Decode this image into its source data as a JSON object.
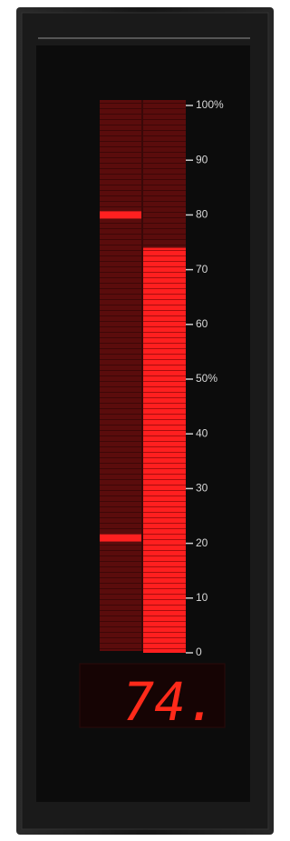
{
  "scale": {
    "ticks": [
      {
        "value": 100,
        "label": "100%"
      },
      90,
      80,
      70,
      60,
      {
        "value": 50,
        "label": "50%"
      },
      40,
      30,
      20,
      10,
      0
    ]
  },
  "bar": {
    "value": 74
  },
  "setpoints": [
    80,
    21
  ],
  "display": "74."
}
